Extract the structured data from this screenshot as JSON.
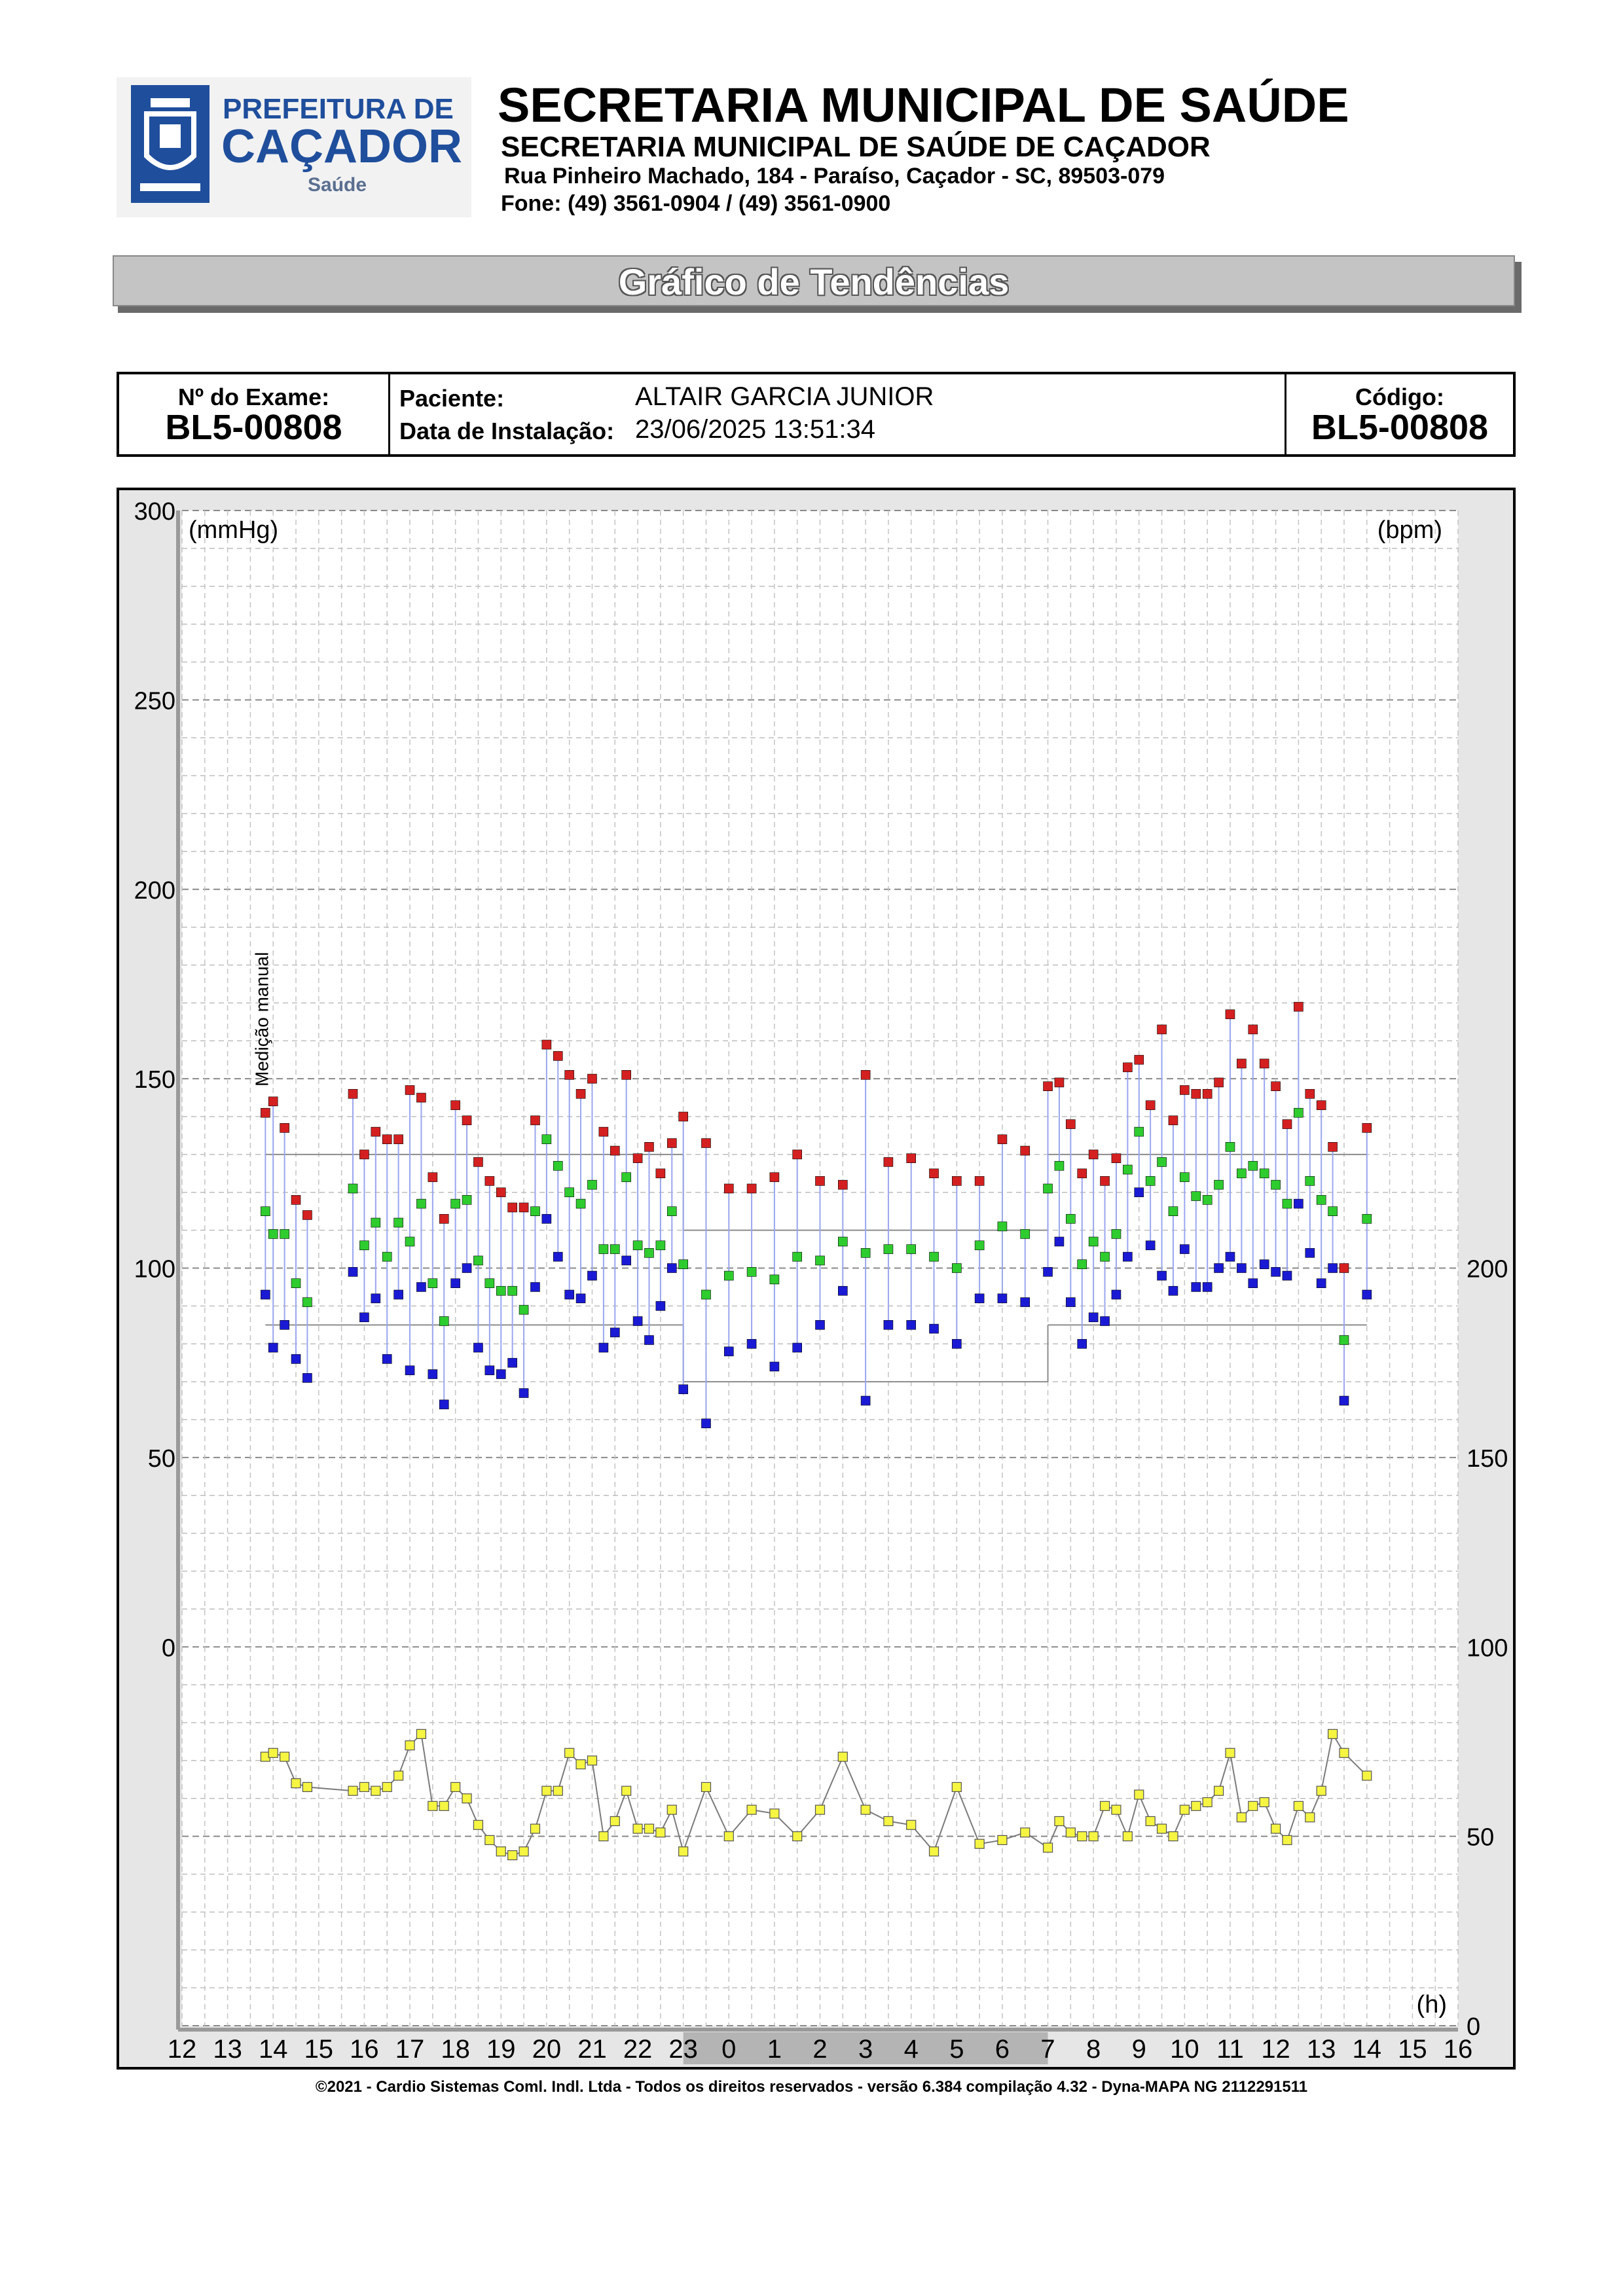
{
  "header": {
    "logo_line1": "PREFEITURA DE",
    "logo_line2": "CAÇADOR",
    "logo_line3": "Saúde",
    "title": "SECRETARIA MUNICIPAL DE SAÚDE",
    "subtitle": "SECRETARIA MUNICIPAL DE SAÚDE DE CAÇADOR",
    "address": "Rua Pinheiro Machado, 184 - Paraíso, Caçador - SC, 89503-079",
    "phone": "Fone: (49) 3561-0904  / (49) 3561-0900"
  },
  "banner": {
    "title": "Gráfico de Tendências"
  },
  "info": {
    "exam_label": "Nº do Exame:",
    "exam_value": "BL5-00808",
    "patient_label": "Paciente:",
    "patient_value": "ALTAIR GARCIA JUNIOR",
    "install_label": "Data de Instalação:",
    "install_value": "23/06/2025 13:51:34",
    "code_label": "Código:",
    "code_value": "BL5-00808"
  },
  "chart_data": {
    "type": "scatter",
    "left_unit": "(mmHg)",
    "right_unit": "(bpm)",
    "x_unit": "(h)",
    "annotation": "Medição manual",
    "left_ticks": [
      "300",
      "250",
      "200",
      "150",
      "100",
      "50",
      "0"
    ],
    "right_ticks": [
      "200",
      "150",
      "100",
      "50",
      "0"
    ],
    "x_ticks": [
      "12",
      "13",
      "14",
      "15",
      "16",
      "17",
      "18",
      "19",
      "20",
      "21",
      "22",
      "23",
      "0",
      "1",
      "2",
      "3",
      "4",
      "5",
      "6",
      "7",
      "8",
      "9",
      "10",
      "11",
      "12",
      "13",
      "14",
      "15",
      "16"
    ],
    "sleep_period_hours": [
      23,
      7
    ],
    "reference_limits": [
      {
        "name": "systolic",
        "day": 130,
        "night": 110
      },
      {
        "name": "diastolic",
        "day": 85,
        "night": 70
      }
    ],
    "colors": {
      "systolic": "#d42020",
      "mean": "#2ecc2e",
      "diastolic": "#1a1ad4",
      "heart_rate": "#f5f542"
    },
    "measurements": [
      {
        "t": 13.83,
        "sys": 141,
        "mean": 115,
        "dia": 93,
        "hr": 71
      },
      {
        "t": 14.0,
        "sys": 144,
        "mean": 109,
        "dia": 79,
        "hr": 72
      },
      {
        "t": 14.25,
        "sys": 137,
        "mean": 109,
        "dia": 85,
        "hr": 71
      },
      {
        "t": 14.5,
        "sys": 118,
        "mean": 96,
        "dia": 76,
        "hr": 64
      },
      {
        "t": 14.75,
        "sys": 114,
        "mean": 91,
        "dia": 71,
        "hr": 63
      },
      {
        "t": 15.75,
        "sys": 146,
        "mean": 121,
        "dia": 99,
        "hr": 62
      },
      {
        "t": 16.0,
        "sys": 130,
        "mean": 106,
        "dia": 87,
        "hr": 63
      },
      {
        "t": 16.25,
        "sys": 136,
        "mean": 112,
        "dia": 92,
        "hr": 62
      },
      {
        "t": 16.5,
        "sys": 134,
        "mean": 103,
        "dia": 76,
        "hr": 63
      },
      {
        "t": 16.75,
        "sys": 134,
        "mean": 112,
        "dia": 93,
        "hr": 66
      },
      {
        "t": 17.0,
        "sys": 147,
        "mean": 107,
        "dia": 73,
        "hr": 74
      },
      {
        "t": 17.25,
        "sys": 145,
        "mean": 117,
        "dia": 95,
        "hr": 77
      },
      {
        "t": 17.5,
        "sys": 124,
        "mean": 96,
        "dia": 72,
        "hr": 58
      },
      {
        "t": 17.75,
        "sys": 113,
        "mean": 86,
        "dia": 64,
        "hr": 58
      },
      {
        "t": 18.0,
        "sys": 143,
        "mean": 117,
        "dia": 96,
        "hr": 63
      },
      {
        "t": 18.25,
        "sys": 139,
        "mean": 118,
        "dia": 100,
        "hr": 60
      },
      {
        "t": 18.5,
        "sys": 128,
        "mean": 102,
        "dia": 79,
        "hr": 53
      },
      {
        "t": 18.75,
        "sys": 123,
        "mean": 96,
        "dia": 73,
        "hr": 49
      },
      {
        "t": 19.0,
        "sys": 120,
        "mean": 94,
        "dia": 72,
        "hr": 46
      },
      {
        "t": 19.25,
        "sys": 116,
        "mean": 94,
        "dia": 75,
        "hr": 45
      },
      {
        "t": 19.5,
        "sys": 116,
        "mean": 89,
        "dia": 67,
        "hr": 46
      },
      {
        "t": 19.75,
        "sys": 139,
        "mean": 115,
        "dia": 95,
        "hr": 52
      },
      {
        "t": 20.0,
        "sys": 159,
        "mean": 134,
        "dia": 113,
        "hr": 62
      },
      {
        "t": 20.25,
        "sys": 156,
        "mean": 127,
        "dia": 103,
        "hr": 62
      },
      {
        "t": 20.5,
        "sys": 151,
        "mean": 120,
        "dia": 93,
        "hr": 72
      },
      {
        "t": 20.75,
        "sys": 146,
        "mean": 117,
        "dia": 92,
        "hr": 69
      },
      {
        "t": 21.0,
        "sys": 150,
        "mean": 122,
        "dia": 98,
        "hr": 70
      },
      {
        "t": 21.25,
        "sys": 136,
        "mean": 105,
        "dia": 79,
        "hr": 50
      },
      {
        "t": 21.5,
        "sys": 131,
        "mean": 105,
        "dia": 83,
        "hr": 54
      },
      {
        "t": 21.75,
        "sys": 151,
        "mean": 124,
        "dia": 102,
        "hr": 62
      },
      {
        "t": 22.0,
        "sys": 129,
        "mean": 106,
        "dia": 86,
        "hr": 52
      },
      {
        "t": 22.25,
        "sys": 132,
        "mean": 104,
        "dia": 81,
        "hr": 52
      },
      {
        "t": 22.5,
        "sys": 125,
        "mean": 106,
        "dia": 90,
        "hr": 51
      },
      {
        "t": 22.75,
        "sys": 133,
        "mean": 115,
        "dia": 100,
        "hr": 57
      },
      {
        "t": 23.0,
        "sys": 140,
        "mean": 101,
        "dia": 68,
        "hr": 46
      },
      {
        "t": 23.5,
        "sys": 133,
        "mean": 93,
        "dia": 59,
        "hr": 63
      },
      {
        "t": 24.0,
        "sys": 121,
        "mean": 98,
        "dia": 78,
        "hr": 50
      },
      {
        "t": 24.5,
        "sys": 121,
        "mean": 99,
        "dia": 80,
        "hr": 57
      },
      {
        "t": 25.0,
        "sys": 124,
        "mean": 97,
        "dia": 74,
        "hr": 56
      },
      {
        "t": 25.5,
        "sys": 130,
        "mean": 103,
        "dia": 79,
        "hr": 50
      },
      {
        "t": 26.0,
        "sys": 123,
        "mean": 102,
        "dia": 85,
        "hr": 57
      },
      {
        "t": 26.5,
        "sys": 122,
        "mean": 107,
        "dia": 94,
        "hr": 71
      },
      {
        "t": 27.0,
        "sys": 151,
        "mean": 104,
        "dia": 65,
        "hr": 57
      },
      {
        "t": 27.5,
        "sys": 128,
        "mean": 105,
        "dia": 85,
        "hr": 54
      },
      {
        "t": 28.0,
        "sys": 129,
        "mean": 105,
        "dia": 85,
        "hr": 53
      },
      {
        "t": 28.5,
        "sys": 125,
        "mean": 103,
        "dia": 84,
        "hr": 46
      },
      {
        "t": 29.0,
        "sys": 123,
        "mean": 100,
        "dia": 80,
        "hr": 63
      },
      {
        "t": 29.5,
        "sys": 123,
        "mean": 106,
        "dia": 92,
        "hr": 48
      },
      {
        "t": 30.0,
        "sys": 134,
        "mean": 111,
        "dia": 92,
        "hr": 49
      },
      {
        "t": 30.5,
        "sys": 131,
        "mean": 109,
        "dia": 91,
        "hr": 51
      },
      {
        "t": 31.0,
        "sys": 148,
        "mean": 121,
        "dia": 99,
        "hr": 47
      },
      {
        "t": 31.25,
        "sys": 149,
        "mean": 127,
        "dia": 107,
        "hr": 54
      },
      {
        "t": 31.5,
        "sys": 138,
        "mean": 113,
        "dia": 91,
        "hr": 51
      },
      {
        "t": 31.75,
        "sys": 125,
        "mean": 101,
        "dia": 80,
        "hr": 50
      },
      {
        "t": 32.0,
        "sys": 130,
        "mean": 107,
        "dia": 87,
        "hr": 50
      },
      {
        "t": 32.25,
        "sys": 123,
        "mean": 103,
        "dia": 86,
        "hr": 58
      },
      {
        "t": 32.5,
        "sys": 129,
        "mean": 109,
        "dia": 93,
        "hr": 57
      },
      {
        "t": 32.75,
        "sys": 153,
        "mean": 126,
        "dia": 103,
        "hr": 50
      },
      {
        "t": 33.0,
        "sys": 155,
        "mean": 136,
        "dia": 120,
        "hr": 61
      },
      {
        "t": 33.25,
        "sys": 143,
        "mean": 123,
        "dia": 106,
        "hr": 54
      },
      {
        "t": 33.5,
        "sys": 163,
        "mean": 128,
        "dia": 98,
        "hr": 52
      },
      {
        "t": 33.75,
        "sys": 139,
        "mean": 115,
        "dia": 94,
        "hr": 50
      },
      {
        "t": 34.0,
        "sys": 147,
        "mean": 124,
        "dia": 105,
        "hr": 57
      },
      {
        "t": 34.25,
        "sys": 146,
        "mean": 119,
        "dia": 95,
        "hr": 58
      },
      {
        "t": 34.5,
        "sys": 146,
        "mean": 118,
        "dia": 95,
        "hr": 59
      },
      {
        "t": 34.75,
        "sys": 149,
        "mean": 122,
        "dia": 100,
        "hr": 62
      },
      {
        "t": 35.0,
        "sys": 167,
        "mean": 132,
        "dia": 103,
        "hr": 72
      },
      {
        "t": 35.25,
        "sys": 154,
        "mean": 125,
        "dia": 100,
        "hr": 55
      },
      {
        "t": 35.5,
        "sys": 163,
        "mean": 127,
        "dia": 96,
        "hr": 58
      },
      {
        "t": 35.75,
        "sys": 154,
        "mean": 125,
        "dia": 101,
        "hr": 59
      },
      {
        "t": 36.0,
        "sys": 148,
        "mean": 122,
        "dia": 99,
        "hr": 52
      },
      {
        "t": 36.25,
        "sys": 138,
        "mean": 117,
        "dia": 98,
        "hr": 49
      },
      {
        "t": 36.5,
        "sys": 169,
        "mean": 141,
        "dia": 117,
        "hr": 58
      },
      {
        "t": 36.75,
        "sys": 146,
        "mean": 123,
        "dia": 104,
        "hr": 55
      },
      {
        "t": 37.0,
        "sys": 143,
        "mean": 118,
        "dia": 96,
        "hr": 62
      },
      {
        "t": 37.25,
        "sys": 132,
        "mean": 115,
        "dia": 100,
        "hr": 77
      },
      {
        "t": 37.5,
        "sys": 100,
        "mean": 81,
        "dia": 65,
        "hr": 72
      },
      {
        "t": 38.0,
        "sys": 137,
        "mean": 113,
        "dia": 93,
        "hr": 66
      }
    ]
  },
  "footer": {
    "copyright": "©2021 - Cardio Sistemas Coml. Indl. Ltda - Todos os direitos reservados - versão 6.384 compilação 4.32 - Dyna-MAPA NG 2112291511"
  }
}
